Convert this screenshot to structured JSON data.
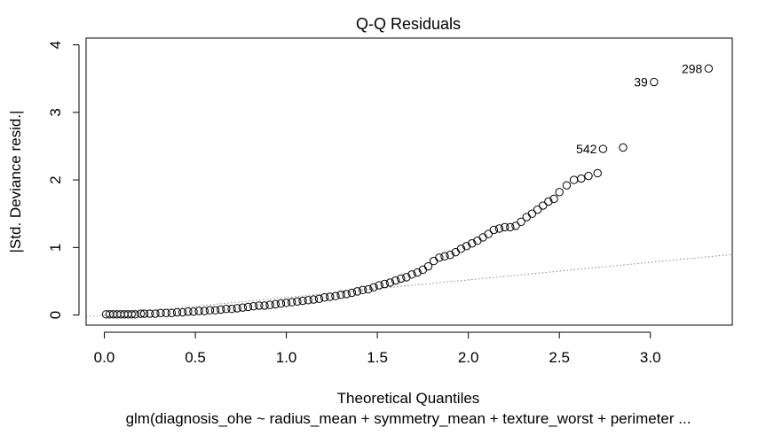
{
  "chart_data": {
    "type": "scatter",
    "title": "Q-Q Residuals",
    "xlabel": "Theoretical Quantiles",
    "ylabel": "|Std. Deviance resid.|",
    "subtitle": "glm(diagnosis_ohe ~ radius_mean + symmetry_mean + texture_worst + perimeter ...",
    "xlim": [
      -0.1,
      3.45
    ],
    "ylim": [
      -0.15,
      4.1
    ],
    "x_ticks": [
      0.0,
      0.5,
      1.0,
      1.5,
      2.0,
      2.5,
      3.0
    ],
    "x_tick_labels": [
      "0.0",
      "0.5",
      "1.0",
      "1.5",
      "2.0",
      "2.5",
      "3.0"
    ],
    "y_ticks": [
      0,
      1,
      2,
      3,
      4
    ],
    "y_tick_labels": [
      "0",
      "1",
      "2",
      "3",
      "4"
    ],
    "points": [
      [
        0.01,
        0.01
      ],
      [
        0.03,
        0.01
      ],
      [
        0.05,
        0.01
      ],
      [
        0.07,
        0.01
      ],
      [
        0.09,
        0.01
      ],
      [
        0.11,
        0.01
      ],
      [
        0.13,
        0.01
      ],
      [
        0.15,
        0.01
      ],
      [
        0.17,
        0.01
      ],
      [
        0.2,
        0.02
      ],
      [
        0.22,
        0.02
      ],
      [
        0.25,
        0.02
      ],
      [
        0.28,
        0.02
      ],
      [
        0.31,
        0.03
      ],
      [
        0.34,
        0.03
      ],
      [
        0.37,
        0.03
      ],
      [
        0.4,
        0.04
      ],
      [
        0.43,
        0.04
      ],
      [
        0.46,
        0.05
      ],
      [
        0.49,
        0.05
      ],
      [
        0.52,
        0.06
      ],
      [
        0.55,
        0.06
      ],
      [
        0.58,
        0.07
      ],
      [
        0.61,
        0.07
      ],
      [
        0.64,
        0.08
      ],
      [
        0.67,
        0.09
      ],
      [
        0.7,
        0.09
      ],
      [
        0.73,
        0.1
      ],
      [
        0.76,
        0.11
      ],
      [
        0.79,
        0.12
      ],
      [
        0.82,
        0.13
      ],
      [
        0.85,
        0.14
      ],
      [
        0.88,
        0.14
      ],
      [
        0.91,
        0.15
      ],
      [
        0.94,
        0.16
      ],
      [
        0.97,
        0.17
      ],
      [
        1.0,
        0.18
      ],
      [
        1.03,
        0.19
      ],
      [
        1.06,
        0.2
      ],
      [
        1.09,
        0.21
      ],
      [
        1.12,
        0.22
      ],
      [
        1.15,
        0.23
      ],
      [
        1.18,
        0.24
      ],
      [
        1.21,
        0.26
      ],
      [
        1.24,
        0.27
      ],
      [
        1.27,
        0.28
      ],
      [
        1.3,
        0.3
      ],
      [
        1.33,
        0.31
      ],
      [
        1.36,
        0.33
      ],
      [
        1.39,
        0.35
      ],
      [
        1.42,
        0.37
      ],
      [
        1.45,
        0.38
      ],
      [
        1.48,
        0.41
      ],
      [
        1.51,
        0.44
      ],
      [
        1.54,
        0.46
      ],
      [
        1.57,
        0.48
      ],
      [
        1.6,
        0.51
      ],
      [
        1.63,
        0.54
      ],
      [
        1.66,
        0.56
      ],
      [
        1.69,
        0.6
      ],
      [
        1.72,
        0.63
      ],
      [
        1.75,
        0.67
      ],
      [
        1.78,
        0.72
      ],
      [
        1.81,
        0.8
      ],
      [
        1.84,
        0.85
      ],
      [
        1.87,
        0.87
      ],
      [
        1.9,
        0.89
      ],
      [
        1.93,
        0.93
      ],
      [
        1.96,
        0.98
      ],
      [
        1.99,
        1.02
      ],
      [
        2.02,
        1.06
      ],
      [
        2.05,
        1.1
      ],
      [
        2.08,
        1.15
      ],
      [
        2.11,
        1.2
      ],
      [
        2.14,
        1.26
      ],
      [
        2.17,
        1.28
      ],
      [
        2.2,
        1.3
      ],
      [
        2.23,
        1.3
      ],
      [
        2.26,
        1.32
      ],
      [
        2.29,
        1.38
      ],
      [
        2.32,
        1.45
      ],
      [
        2.35,
        1.5
      ],
      [
        2.38,
        1.56
      ],
      [
        2.41,
        1.62
      ],
      [
        2.44,
        1.68
      ],
      [
        2.47,
        1.72
      ],
      [
        2.5,
        1.82
      ],
      [
        2.54,
        1.92
      ],
      [
        2.58,
        2.0
      ],
      [
        2.62,
        2.02
      ],
      [
        2.66,
        2.06
      ],
      [
        2.71,
        2.1
      ],
      [
        2.74,
        2.46
      ],
      [
        2.85,
        2.48
      ],
      [
        3.02,
        3.45
      ],
      [
        3.32,
        3.65
      ]
    ],
    "reference_line": {
      "intercept": 0.0,
      "slope": 0.26,
      "style": "dotted",
      "color": "#888888"
    },
    "annotations": [
      {
        "label": "298",
        "x": 3.32,
        "y": 3.65
      },
      {
        "label": "39",
        "x": 3.02,
        "y": 3.45
      },
      {
        "label": "542",
        "x": 2.74,
        "y": 2.46
      }
    ],
    "grid": false,
    "legend": "none"
  }
}
